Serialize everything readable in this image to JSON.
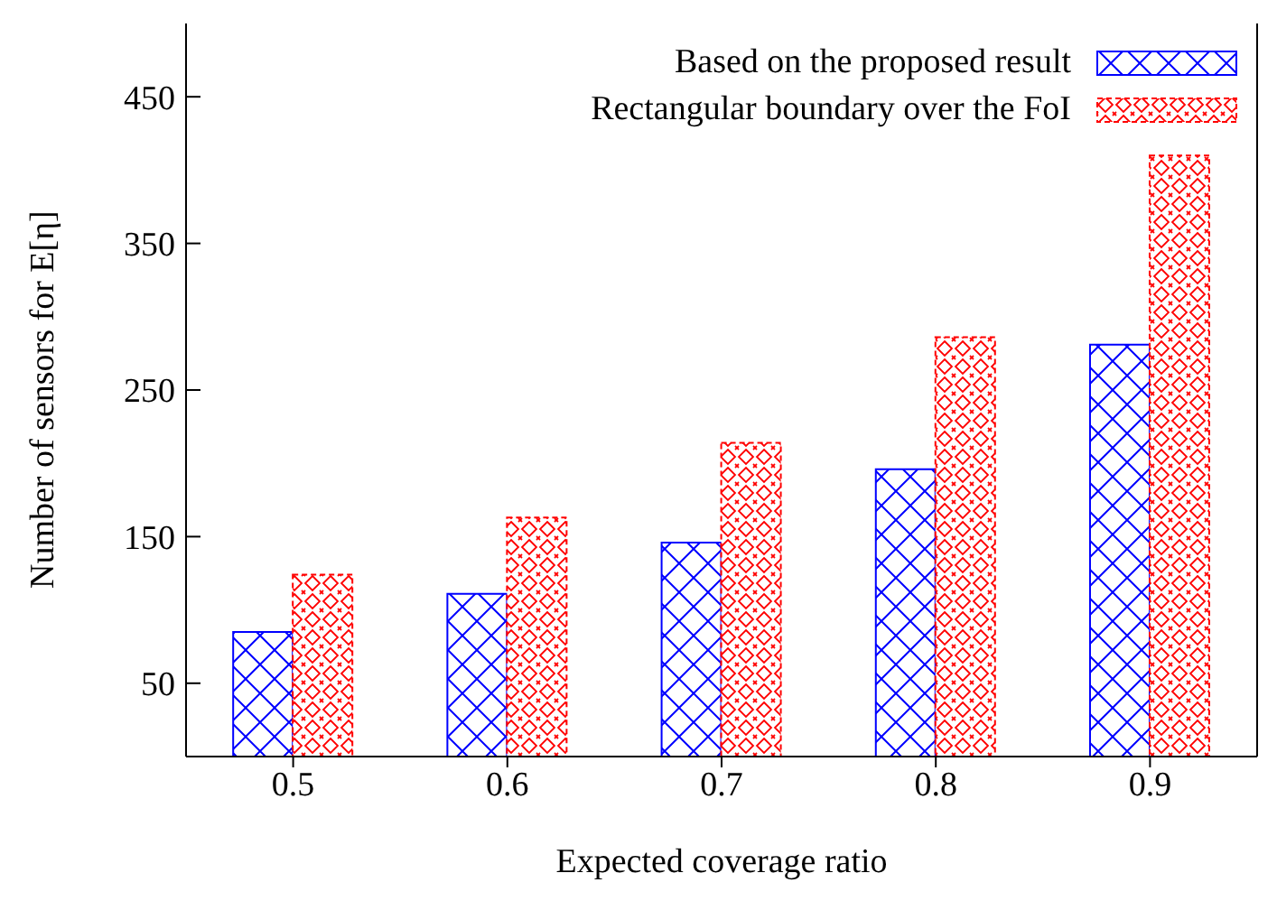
{
  "chart_data": {
    "type": "bar",
    "xlabel": "Expected coverage ratio",
    "ylabel": "Number of sensors for E[η]",
    "categories": [
      "0.5",
      "0.6",
      "0.7",
      "0.8",
      "0.9"
    ],
    "series": [
      {
        "name": "Based on the proposed result",
        "color": "#0000ff",
        "values": [
          85,
          111,
          146,
          196,
          281
        ]
      },
      {
        "name": "Rectangular boundary over the FoI",
        "color": "#ff0000",
        "values": [
          124,
          163,
          214,
          286,
          410
        ]
      }
    ],
    "ylim": [
      0,
      500
    ],
    "yticks": [
      50,
      150,
      250,
      350,
      450
    ],
    "grid": false,
    "legend": "top right"
  }
}
